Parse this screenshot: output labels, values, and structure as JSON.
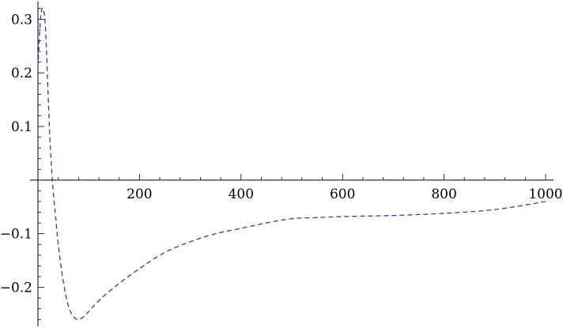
{
  "chart_data": {
    "type": "line",
    "title": "",
    "xlabel": "",
    "ylabel": "",
    "xlim": [
      0,
      1000
    ],
    "ylim": [
      -0.27,
      0.33
    ],
    "xticks": [
      200,
      400,
      600,
      800,
      1000
    ],
    "xtick_labels": [
      "200",
      "400",
      "600",
      "800",
      "1000"
    ],
    "yticks": [
      -0.2,
      -0.1,
      0.1,
      0.2,
      0.3
    ],
    "ytick_labels": [
      "−0.2",
      "−0.1",
      "0.1",
      "0.2",
      "0.3"
    ],
    "grid": false,
    "legend": "none",
    "series": [
      {
        "color": "#3a3a9a",
        "style": "dashed",
        "x": [
          0,
          5,
          10,
          15,
          20,
          25,
          30,
          35,
          40,
          50,
          60,
          70,
          80,
          90,
          100,
          120,
          150,
          200,
          250,
          300,
          350,
          400,
          450,
          500,
          550,
          600,
          700,
          800,
          900,
          1000
        ],
        "y": [
          0.21,
          0.3,
          0.32,
          0.28,
          0.16,
          0.05,
          -0.02,
          -0.07,
          -0.12,
          -0.19,
          -0.235,
          -0.255,
          -0.26,
          -0.255,
          -0.245,
          -0.225,
          -0.2,
          -0.165,
          -0.135,
          -0.115,
          -0.1,
          -0.09,
          -0.08,
          -0.072,
          -0.07,
          -0.068,
          -0.066,
          -0.062,
          -0.055,
          -0.04
        ]
      }
    ]
  }
}
